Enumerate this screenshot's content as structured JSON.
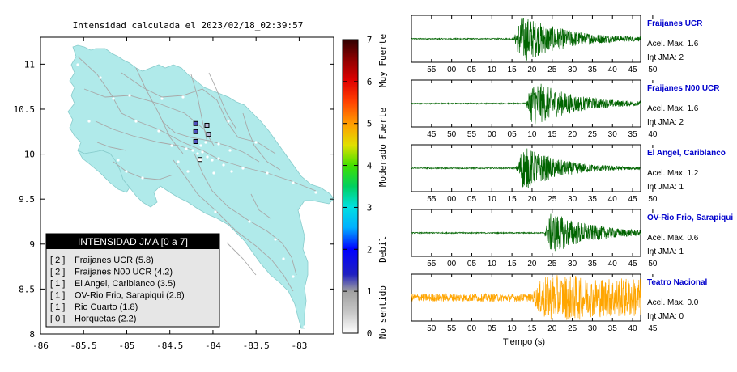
{
  "map_title": "Intensidad calculada el 2023/02/18_02:39:57",
  "colorbar": {
    "ticks": [
      "0",
      "1",
      "2",
      "3",
      "4",
      "5",
      "6",
      "7"
    ],
    "labels": [
      "No sentido",
      "Debil",
      "Moderado",
      "Fuerte",
      "Muy Fuerte"
    ]
  },
  "legend": {
    "title": "INTENSIDAD JMA [0 a 7]",
    "items": [
      {
        "jma": "[ 2 ]",
        "name": "Fraijanes UCR (5.8)"
      },
      {
        "jma": "[ 2 ]",
        "name": "Fraijanes N00 UCR (4.2)"
      },
      {
        "jma": "[ 1 ]",
        "name": "El Angel, Cariblanco (3.5)"
      },
      {
        "jma": "[ 1 ]",
        "name": "OV-Rio Frio, Sarapiqui (2.8)"
      },
      {
        "jma": "[ 1 ]",
        "name": "Rio Cuarto (1.8)"
      },
      {
        "jma": "[ 0 ]",
        "name": "Horquetas (2.2)"
      }
    ]
  },
  "colors": {
    "land": "#b0eaea",
    "roads": "#a8a8a8",
    "green_trace": "#006400",
    "orange_trace": "#ffa500",
    "station_title": "#0000cc",
    "legend_header": "#000000",
    "legend_bg": "#e6e6e6"
  },
  "stations": [
    {
      "title": "Fraijanes UCR",
      "acel": "Acel. Max. 1.6",
      "int": "Int JMA: 2",
      "color": "green"
    },
    {
      "title": "Fraijanes N00 UCR",
      "acel": "Acel. Max. 1.6",
      "int": "Int JMA: 2",
      "color": "green"
    },
    {
      "title": "El Angel, Cariblanco",
      "acel": "Acel. Max. 1.2",
      "int": "Int JMA: 1",
      "color": "green"
    },
    {
      "title": "OV-Rio Frio, Sarapiqui",
      "acel": "Acel. Max. 0.6",
      "int": "Int JMA: 1",
      "color": "green"
    },
    {
      "title": "Teatro Nacional",
      "acel": "Acel. Max. 0.0",
      "int": "Int JMA: 0",
      "color": "orange"
    }
  ],
  "xlabel": "Tiempo (s)",
  "chart_data": [
    {
      "type": "map",
      "title": "Intensidad calculada el 2023/02/18_02:39:57",
      "xlim": [
        -86,
        -82.6
      ],
      "ylim": [
        8,
        11.3
      ],
      "x_ticks": [
        "-86",
        "-85.5",
        "-85",
        "-84.5",
        "-84",
        "-83.5",
        "-83"
      ],
      "y_ticks": [
        "8",
        "8.5",
        "9",
        "9.5",
        "10",
        "10.5",
        "11"
      ],
      "colorbar_range": [
        0,
        7
      ],
      "station_markers": [
        {
          "lon": -84.2,
          "lat": 10.34,
          "jma": 2
        },
        {
          "lon": -84.2,
          "lat": 10.25,
          "jma": 2
        },
        {
          "lon": -84.2,
          "lat": 10.14,
          "jma": 2
        },
        {
          "lon": -84.07,
          "lat": 10.32,
          "jma": 1
        },
        {
          "lon": -84.05,
          "lat": 10.22,
          "jma": 1
        },
        {
          "lon": -84.15,
          "lat": 9.94,
          "jma": 0
        }
      ]
    },
    {
      "type": "line",
      "series": [
        {
          "name": "Fraijanes UCR",
          "t_start": 50,
          "t_ticks": [
            "55",
            "00",
            "05",
            "10",
            "15",
            "20",
            "25",
            "30",
            "35",
            "40",
            "45",
            "50"
          ],
          "onset": 25.5,
          "peak": 1.0,
          "decay": 11
        },
        {
          "name": "Fraijanes N00 UCR",
          "t_start": 40,
          "t_ticks": [
            "45",
            "50",
            "55",
            "00",
            "05",
            "10",
            "15",
            "20",
            "25",
            "30",
            "35",
            "40"
          ],
          "onset": 28.5,
          "peak": 0.95,
          "decay": 10
        },
        {
          "name": "El Angel, Cariblanco",
          "t_start": 50,
          "t_ticks": [
            "55",
            "00",
            "05",
            "10",
            "15",
            "20",
            "25",
            "30",
            "35",
            "40",
            "45",
            "50"
          ],
          "onset": 26,
          "peak": 0.9,
          "decay": 9
        },
        {
          "name": "OV-Rio Frio, Sarapiqui",
          "t_start": 50,
          "t_ticks": [
            "55",
            "00",
            "05",
            "10",
            "15",
            "20",
            "25",
            "30",
            "35",
            "40",
            "45",
            "50"
          ],
          "onset": 33,
          "peak": 0.85,
          "decay": 10
        },
        {
          "name": "Teatro Nacional",
          "t_start": 45,
          "t_ticks": [
            "50",
            "55",
            "00",
            "05",
            "10",
            "15",
            "20",
            "25",
            "30",
            "35",
            "40",
            "45"
          ],
          "onset": 30,
          "peak": 0.85,
          "decay": 30
        }
      ],
      "xlabel": "Tiempo (s)"
    }
  ]
}
